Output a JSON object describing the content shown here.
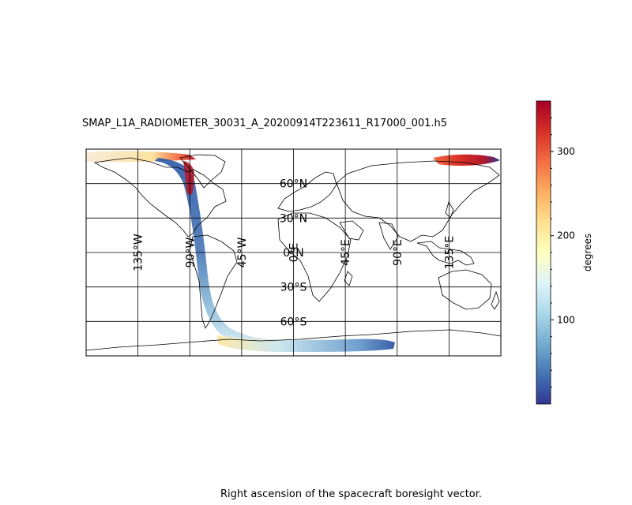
{
  "map": {
    "title": "SMAP_L1A_RADIOMETER_30031_A_20200914T223611_R17000_001.h5",
    "caption": "Right ascension of the spacecraft boresight vector.",
    "lat_labels": [
      {
        "text": "60°N",
        "lat": 60
      },
      {
        "text": "30°N",
        "lat": 30
      },
      {
        "text": "0°N",
        "lat": 0
      },
      {
        "text": "30°S",
        "lat": -30
      },
      {
        "text": "60°S",
        "lat": -60
      }
    ],
    "lon_labels": [
      {
        "text": "135°W",
        "lon": -135
      },
      {
        "text": "90°W",
        "lon": -90
      },
      {
        "text": "45°W",
        "lon": -45
      },
      {
        "text": "0°E",
        "lon": 0
      },
      {
        "text": "45°E",
        "lon": 45
      },
      {
        "text": "90°E",
        "lon": 90
      },
      {
        "text": "135°E",
        "lon": 135
      }
    ],
    "colorbar": {
      "label": "degrees",
      "ticks": [
        "100",
        "200",
        "300"
      ],
      "tick_values": [
        100,
        200,
        300
      ],
      "range": [
        0,
        360
      ],
      "colormap": "RdYlBu_r"
    },
    "colors": {
      "coast": "#000000",
      "grid": "#000000"
    }
  }
}
